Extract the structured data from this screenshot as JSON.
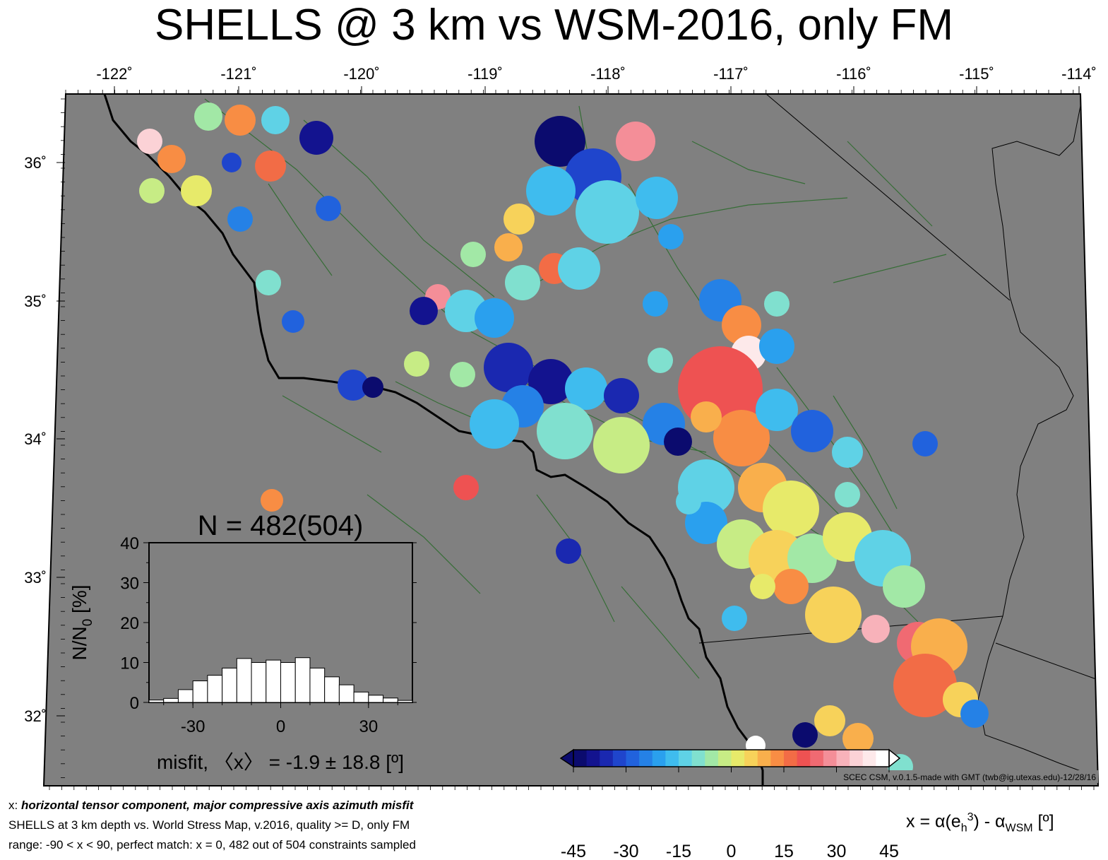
{
  "title": "SHELLS @ 3 km vs WSM-2016, only FM",
  "map": {
    "lon_ticks": [
      "-122˚",
      "-121˚",
      "-120˚",
      "-119˚",
      "-118˚",
      "-117˚",
      "-116˚",
      "-115˚",
      "-114˚"
    ],
    "lat_ticks": [
      "36˚",
      "35˚",
      "34˚",
      "33˚",
      "32˚"
    ],
    "credit": "SCEC CSM, v.0.1.5-made with GMT (twb@ig.utexas.edu)-12/28/16",
    "colors": {
      "background": "#808080",
      "coast": "#000000",
      "faults": "#2e6b2e"
    }
  },
  "histogram": {
    "title": "N = 482(504)",
    "ylabel_main": "N/N",
    "ylabel_sub": "0",
    "ylabel_unit": " [%]",
    "yticks": [
      "0",
      "10",
      "20",
      "30",
      "40"
    ],
    "xticks": [
      "-30",
      "0",
      "30"
    ],
    "xlabel": "misfit, 〈x〉 = -1.9 ± 18.8 [º]"
  },
  "chart_data": {
    "type": "bar",
    "title": "N = 482(504)",
    "xlabel": "misfit, 〈x〉 = -1.9 ± 18.8 [º]",
    "ylabel": "N/N0 [%]",
    "xlim": [
      -45,
      45
    ],
    "ylim": [
      0,
      40
    ],
    "bin_width": 5,
    "categories": [
      -42.5,
      -37.5,
      -32.5,
      -27.5,
      -22.5,
      -17.5,
      -12.5,
      -7.5,
      -2.5,
      2.5,
      7.5,
      12.5,
      17.5,
      22.5,
      27.5,
      32.5,
      37.5,
      42.5
    ],
    "values": [
      0.6,
      1.0,
      3.2,
      5.4,
      6.8,
      8.6,
      11.0,
      10.0,
      10.6,
      10.0,
      11.2,
      8.6,
      6.4,
      4.4,
      2.6,
      1.8,
      1.1,
      0.5
    ]
  },
  "captions": {
    "line1_prefix": "x: ",
    "line1_emph": "horizontal tensor component, major compressive axis azimuth misfit",
    "line2": "SHELLS at 3 km depth vs.  World Stress Map, v.2016, quality >= D, only FM",
    "line3": "range: -90 < x < 90, perfect match: x = 0, 482 out of 504 constraints sampled"
  },
  "colorbar": {
    "ticks": [
      "-45",
      "-30",
      "-15",
      "0",
      "15",
      "30",
      "45"
    ],
    "label_pre": "x = α(e",
    "label_sub": "h",
    "label_sup": "3",
    "label_mid": ") - α",
    "label_sub2": "WSM",
    "label_post": " [º]",
    "colors": [
      "#0b0b6e",
      "#13138f",
      "#1a28b0",
      "#1f45cc",
      "#2162dd",
      "#2581e6",
      "#2aa0ee",
      "#3fbcee",
      "#5fd2e6",
      "#80e0cf",
      "#a2e8a6",
      "#c7ec85",
      "#e7ea6a",
      "#f7d25a",
      "#f9af4c",
      "#f88d44",
      "#f26c46",
      "#ee5252",
      "#f06a72",
      "#f48e98",
      "#f8b2ba",
      "#fbd2d6",
      "#fde9ea",
      "#ffffff"
    ]
  }
}
